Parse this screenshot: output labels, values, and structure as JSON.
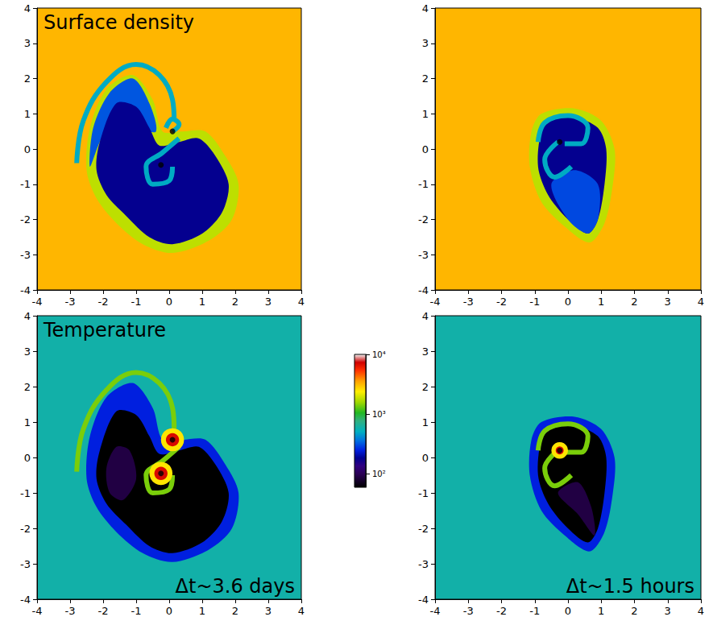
{
  "chart_data": [
    {
      "type": "heatmap",
      "title": "Surface density",
      "xlim": [
        -4,
        4
      ],
      "ylim": [
        -4,
        4
      ],
      "xticks": [
        -4,
        -3,
        -2,
        -1,
        0,
        1,
        2,
        3,
        4
      ],
      "yticks": [
        -4,
        -3,
        -2,
        -1,
        0,
        1,
        2,
        3,
        4
      ],
      "background": 3200,
      "regions": [
        {
          "value": 1800,
          "points": [
            [
              -2.5,
              -0.6
            ],
            [
              -2.4,
              0.6
            ],
            [
              -1.9,
              1.7
            ],
            [
              -1.1,
              2.1
            ],
            [
              -0.5,
              1.4
            ],
            [
              -0.2,
              0.5
            ],
            [
              0.4,
              0.5
            ],
            [
              1.1,
              0.5
            ],
            [
              1.7,
              -0.2
            ],
            [
              2.1,
              -1.0
            ],
            [
              1.9,
              -2.0
            ],
            [
              1.2,
              -2.6
            ],
            [
              0.1,
              -2.95
            ],
            [
              -0.8,
              -2.7
            ],
            [
              -1.6,
              -2.1
            ],
            [
              -2.2,
              -1.4
            ]
          ]
        },
        {
          "value": 320,
          "points": [
            [
              -2.4,
              -0.5
            ],
            [
              -2.3,
              0.6
            ],
            [
              -1.8,
              1.6
            ],
            [
              -1.1,
              2.0
            ],
            [
              -0.6,
              1.3
            ],
            [
              -0.4,
              0.5
            ],
            [
              -1.0,
              0.6
            ],
            [
              -1.7,
              0.8
            ],
            [
              -2.1,
              0.2
            ]
          ]
        },
        {
          "value": 180,
          "points": [
            [
              -1.6,
              1.3
            ],
            [
              -1.0,
              1.2
            ],
            [
              -0.6,
              0.6
            ],
            [
              -0.3,
              0.1
            ],
            [
              0.3,
              0.2
            ],
            [
              0.9,
              0.3
            ],
            [
              1.4,
              -0.2
            ],
            [
              1.8,
              -1.0
            ],
            [
              1.6,
              -1.8
            ],
            [
              1.0,
              -2.4
            ],
            [
              0.1,
              -2.7
            ],
            [
              -0.6,
              -2.5
            ],
            [
              -1.3,
              -1.9
            ],
            [
              -1.9,
              -1.3
            ],
            [
              -2.2,
              -0.6
            ],
            [
              -2.1,
              0.2
            ]
          ]
        }
      ],
      "arms": [
        {
          "value": 500,
          "points": [
            [
              -2.8,
              -0.4
            ],
            [
              -2.6,
              0.8
            ],
            [
              -1.9,
              1.9
            ],
            [
              -1.0,
              2.4
            ],
            [
              -0.3,
              2.1
            ],
            [
              0.1,
              1.4
            ],
            [
              0.15,
              0.8
            ]
          ]
        },
        {
          "value": 500,
          "points": [
            [
              0.3,
              0.3
            ],
            [
              -0.2,
              -0.1
            ],
            [
              -0.7,
              -0.5
            ],
            [
              -0.5,
              -1.0
            ],
            [
              0.0,
              -0.9
            ],
            [
              0.1,
              -0.5
            ]
          ]
        },
        {
          "value": 500,
          "points": [
            [
              0.1,
              0.5
            ],
            [
              0.3,
              0.7
            ],
            [
              0.1,
              0.85
            ],
            [
              -0.1,
              0.6
            ]
          ]
        }
      ],
      "spots": [],
      "stars": [
        [
          0.1,
          0.5
        ],
        [
          -0.25,
          -0.45
        ]
      ]
    },
    {
      "type": "heatmap",
      "xlim": [
        -4,
        4
      ],
      "ylim": [
        -4,
        4
      ],
      "xticks": [
        -4,
        -3,
        -2,
        -1,
        0,
        1,
        2,
        3,
        4
      ],
      "yticks": [
        -4,
        -3,
        -2,
        -1,
        0,
        1,
        2,
        3,
        4
      ],
      "background": 3200,
      "regions": [
        {
          "value": 1800,
          "points": [
            [
              -1.1,
              0.5
            ],
            [
              -0.8,
              1.0
            ],
            [
              0.2,
              1.15
            ],
            [
              1.0,
              0.8
            ],
            [
              1.4,
              0.0
            ],
            [
              1.35,
              -1.0
            ],
            [
              1.1,
              -2.1
            ],
            [
              0.65,
              -2.65
            ],
            [
              -0.1,
              -2.2
            ],
            [
              -0.8,
              -1.5
            ],
            [
              -1.15,
              -0.5
            ]
          ]
        },
        {
          "value": 180,
          "points": [
            [
              -0.8,
              0.5
            ],
            [
              -0.5,
              0.8
            ],
            [
              0.2,
              0.9
            ],
            [
              0.9,
              0.6
            ],
            [
              1.15,
              0.0
            ],
            [
              1.1,
              -1.0
            ],
            [
              0.9,
              -2.0
            ],
            [
              0.6,
              -2.4
            ],
            [
              0.0,
              -2.0
            ],
            [
              -0.6,
              -1.3
            ],
            [
              -0.9,
              -0.5
            ]
          ]
        },
        {
          "value": 300,
          "points": [
            [
              -0.5,
              -1.0
            ],
            [
              0.2,
              -0.6
            ],
            [
              0.9,
              -1.0
            ],
            [
              0.9,
              -2.0
            ],
            [
              0.6,
              -2.4
            ],
            [
              0.0,
              -2.0
            ]
          ]
        }
      ],
      "arms": [
        {
          "value": 500,
          "points": [
            [
              -0.9,
              0.2
            ],
            [
              -0.7,
              0.75
            ],
            [
              0.0,
              0.95
            ],
            [
              0.6,
              0.6
            ],
            [
              0.4,
              0.15
            ],
            [
              -0.1,
              0.15
            ]
          ]
        },
        {
          "value": 500,
          "points": [
            [
              -0.3,
              0.2
            ],
            [
              -0.7,
              -0.3
            ],
            [
              -0.4,
              -0.8
            ],
            [
              0.1,
              -0.5
            ]
          ]
        }
      ],
      "spots": [],
      "stars": [
        [
          -0.25,
          0.2
        ]
      ]
    },
    {
      "type": "heatmap",
      "title": "Temperature",
      "annotation": "Δt~3.6 days",
      "xlim": [
        -4,
        4
      ],
      "ylim": [
        -4,
        4
      ],
      "xticks": [
        -4,
        -3,
        -2,
        -1,
        0,
        1,
        2,
        3,
        4
      ],
      "yticks": [
        -4,
        -3,
        -2,
        -1,
        0,
        1,
        2,
        3,
        4
      ],
      "background": 600,
      "regions": [
        {
          "value": 250,
          "points": [
            [
              -2.5,
              -0.6
            ],
            [
              -2.4,
              0.6
            ],
            [
              -1.9,
              1.7
            ],
            [
              -1.1,
              2.1
            ],
            [
              -0.5,
              1.4
            ],
            [
              -0.2,
              0.5
            ],
            [
              0.4,
              0.5
            ],
            [
              1.1,
              0.5
            ],
            [
              1.7,
              -0.2
            ],
            [
              2.1,
              -1.0
            ],
            [
              1.9,
              -2.0
            ],
            [
              1.2,
              -2.6
            ],
            [
              0.1,
              -2.95
            ],
            [
              -0.8,
              -2.7
            ],
            [
              -1.6,
              -2.1
            ],
            [
              -2.2,
              -1.4
            ]
          ]
        },
        {
          "value": 60,
          "points": [
            [
              -1.6,
              1.3
            ],
            [
              -1.0,
              1.2
            ],
            [
              -0.6,
              0.6
            ],
            [
              -0.3,
              0.1
            ],
            [
              0.3,
              0.2
            ],
            [
              0.9,
              0.3
            ],
            [
              1.4,
              -0.2
            ],
            [
              1.8,
              -1.0
            ],
            [
              1.6,
              -1.8
            ],
            [
              1.0,
              -2.4
            ],
            [
              0.1,
              -2.7
            ],
            [
              -0.6,
              -2.5
            ],
            [
              -1.3,
              -1.9
            ],
            [
              -1.9,
              -1.3
            ],
            [
              -2.2,
              -0.6
            ],
            [
              -2.1,
              0.2
            ]
          ]
        },
        {
          "value": 90,
          "points": [
            [
              -1.9,
              -0.3
            ],
            [
              -1.6,
              0.3
            ],
            [
              -1.2,
              0.2
            ],
            [
              -1.0,
              -0.6
            ],
            [
              -1.4,
              -1.2
            ],
            [
              -1.8,
              -1.0
            ]
          ]
        }
      ],
      "arms": [
        {
          "value": 1400,
          "points": [
            [
              -2.8,
              -0.4
            ],
            [
              -2.6,
              0.8
            ],
            [
              -1.9,
              1.9
            ],
            [
              -1.0,
              2.4
            ],
            [
              -0.3,
              2.1
            ],
            [
              0.1,
              1.4
            ],
            [
              0.15,
              0.8
            ]
          ]
        },
        {
          "value": 1400,
          "points": [
            [
              0.3,
              0.3
            ],
            [
              -0.2,
              -0.1
            ],
            [
              -0.7,
              -0.5
            ],
            [
              -0.5,
              -1.0
            ],
            [
              0.0,
              -0.9
            ],
            [
              0.1,
              -0.5
            ]
          ]
        }
      ],
      "spots": [
        {
          "value": 2500,
          "x": 0.1,
          "y": 0.5,
          "r": 0.35
        },
        {
          "value": 7000,
          "x": 0.1,
          "y": 0.5,
          "r": 0.2
        },
        {
          "value": 2500,
          "x": -0.25,
          "y": -0.45,
          "r": 0.35
        },
        {
          "value": 7000,
          "x": -0.25,
          "y": -0.45,
          "r": 0.2
        }
      ],
      "stars": [
        [
          0.1,
          0.5
        ],
        [
          -0.25,
          -0.45
        ]
      ]
    },
    {
      "type": "heatmap",
      "annotation": "Δt~1.5 hours",
      "xlim": [
        -4,
        4
      ],
      "ylim": [
        -4,
        4
      ],
      "xticks": [
        -4,
        -3,
        -2,
        -1,
        0,
        1,
        2,
        3,
        4
      ],
      "yticks": [
        -4,
        -3,
        -2,
        -1,
        0,
        1,
        2,
        3,
        4
      ],
      "background": 600,
      "regions": [
        {
          "value": 250,
          "points": [
            [
              -1.1,
              0.5
            ],
            [
              -0.8,
              1.0
            ],
            [
              0.2,
              1.15
            ],
            [
              1.0,
              0.8
            ],
            [
              1.4,
              0.0
            ],
            [
              1.35,
              -1.0
            ],
            [
              1.1,
              -2.1
            ],
            [
              0.65,
              -2.65
            ],
            [
              -0.1,
              -2.2
            ],
            [
              -0.8,
              -1.5
            ],
            [
              -1.15,
              -0.5
            ]
          ]
        },
        {
          "value": 60,
          "points": [
            [
              -0.8,
              0.5
            ],
            [
              -0.5,
              0.8
            ],
            [
              0.2,
              0.9
            ],
            [
              0.9,
              0.6
            ],
            [
              1.15,
              0.0
            ],
            [
              1.1,
              -1.0
            ],
            [
              0.9,
              -2.0
            ],
            [
              0.6,
              -2.4
            ],
            [
              0.0,
              -2.0
            ],
            [
              -0.6,
              -1.3
            ],
            [
              -0.9,
              -0.5
            ]
          ]
        },
        {
          "value": 90,
          "points": [
            [
              -0.3,
              -1.0
            ],
            [
              0.3,
              -0.7
            ],
            [
              0.7,
              -1.4
            ],
            [
              0.8,
              -2.2
            ],
            [
              0.3,
              -1.6
            ]
          ]
        }
      ],
      "arms": [
        {
          "value": 1400,
          "points": [
            [
              -0.9,
              0.2
            ],
            [
              -0.7,
              0.75
            ],
            [
              0.0,
              0.95
            ],
            [
              0.6,
              0.6
            ],
            [
              0.4,
              0.15
            ],
            [
              -0.1,
              0.15
            ]
          ]
        },
        {
          "value": 1400,
          "points": [
            [
              -0.3,
              0.2
            ],
            [
              -0.7,
              -0.3
            ],
            [
              -0.4,
              -0.8
            ],
            [
              0.1,
              -0.5
            ]
          ]
        }
      ],
      "spots": [
        {
          "value": 2500,
          "x": -0.25,
          "y": 0.2,
          "r": 0.25
        },
        {
          "value": 7000,
          "x": -0.25,
          "y": 0.2,
          "r": 0.12
        }
      ],
      "stars": [
        [
          -0.25,
          0.2
        ]
      ]
    }
  ],
  "colorbar": {
    "range": [
      60,
      10000
    ],
    "log": true,
    "ticks": [
      {
        "value": 100,
        "label": "10²"
      },
      {
        "value": 1000,
        "label": "10³"
      },
      {
        "value": 10000,
        "label": "10⁴"
      }
    ]
  }
}
